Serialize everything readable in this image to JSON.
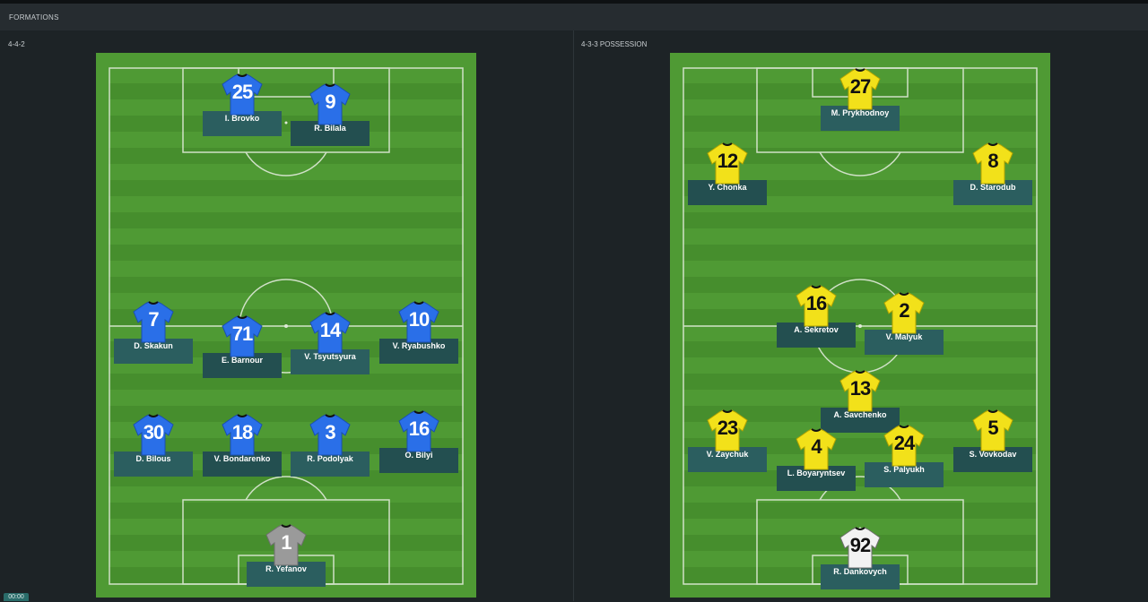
{
  "header": {
    "title": "FORMATIONS"
  },
  "clock": "00:00",
  "left": {
    "formation": "4-4-2",
    "players": [
      {
        "number": "25",
        "name": "I. Brovko"
      },
      {
        "number": "9",
        "name": "R. Bilala"
      },
      {
        "number": "7",
        "name": "D. Skakun"
      },
      {
        "number": "71",
        "name": "E. Barnour"
      },
      {
        "number": "14",
        "name": "V. Tsyutsyura"
      },
      {
        "number": "10",
        "name": "V. Ryabushko"
      },
      {
        "number": "30",
        "name": "D. Bilous"
      },
      {
        "number": "18",
        "name": "V. Bondarenko"
      },
      {
        "number": "3",
        "name": "R. Podolyak"
      },
      {
        "number": "16",
        "name": "O. Bilyi"
      },
      {
        "number": "1",
        "name": "R. Yefanov"
      }
    ]
  },
  "right": {
    "formation": "4-3-3 POSSESSION",
    "players": [
      {
        "number": "27",
        "name": "M. Prykhodnoy"
      },
      {
        "number": "12",
        "name": "Y. Chonka"
      },
      {
        "number": "8",
        "name": "D. Starodub"
      },
      {
        "number": "16",
        "name": "A. Sekretov"
      },
      {
        "number": "2",
        "name": "V. Malyuk"
      },
      {
        "number": "13",
        "name": "A. Savchenko"
      },
      {
        "number": "23",
        "name": "V. Zaychuk"
      },
      {
        "number": "4",
        "name": "L. Boyaryntsev"
      },
      {
        "number": "24",
        "name": "S. Palyukh"
      },
      {
        "number": "5",
        "name": "S. Vovkodav"
      },
      {
        "number": "92",
        "name": "R. Dankovych"
      }
    ]
  },
  "colors": {
    "home_shirt": "#2a6fe8",
    "home_keeper": "#9a9a9a",
    "away_shirt": "#f2e11a",
    "away_keeper": "#f2f2f2"
  }
}
